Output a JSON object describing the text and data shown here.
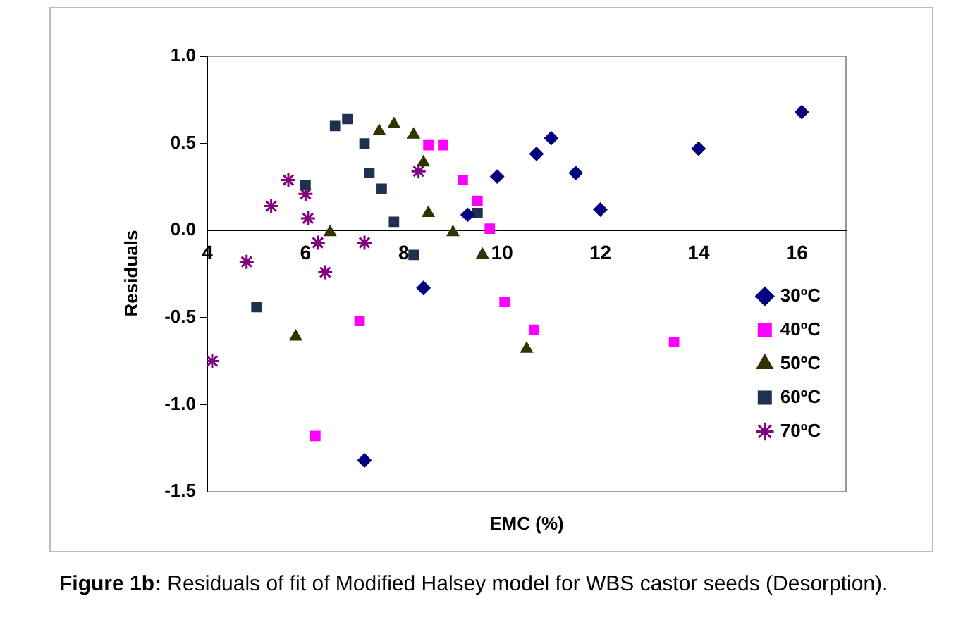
{
  "chart_data": {
    "type": "scatter",
    "xlabel": "EMC (%)",
    "ylabel": "Residuals",
    "xlim": [
      4,
      17
    ],
    "xticks": [
      4,
      6,
      8,
      10,
      12,
      14,
      16
    ],
    "ylim": [
      -1.5,
      1
    ],
    "yticks": [
      {
        "value": -1.5,
        "label": "-1.5"
      },
      {
        "value": -1,
        "label": "-1.0"
      },
      {
        "value": -0.5,
        "label": "-0.5"
      },
      {
        "value": 0,
        "label": "0.0"
      },
      {
        "value": 0.5,
        "label": "0.5"
      },
      {
        "value": 1,
        "label": "1.0"
      }
    ],
    "grid": false,
    "legend": "right",
    "annotations": [
      "Figure 1b: Residuals of fit of Modified Halsey model for WBS castor seeds (Desorption)."
    ],
    "series": [
      {
        "name": "30ºC",
        "color": "#000080",
        "marker": "diamond",
        "x": [
          7.2,
          8.4,
          9.3,
          9.9,
          10.7,
          11.0,
          11.5,
          12.0,
          14.0,
          16.1
        ],
        "values": [
          -1.32,
          -0.33,
          0.09,
          0.31,
          0.44,
          0.53,
          0.33,
          0.12,
          0.47,
          0.68
        ]
      },
      {
        "name": "40ºC",
        "color": "#ff00ff",
        "marker": "square",
        "x": [
          6.2,
          7.1,
          8.5,
          8.8,
          9.2,
          9.5,
          9.75,
          10.05,
          10.65,
          13.5
        ],
        "values": [
          -1.18,
          -0.52,
          0.49,
          0.49,
          0.29,
          0.17,
          0.01,
          -0.41,
          -0.57,
          -0.64
        ]
      },
      {
        "name": "50ºC",
        "color": "#333300",
        "marker": "triangle",
        "x": [
          5.8,
          6.5,
          7.5,
          7.8,
          8.2,
          8.4,
          8.5,
          9.0,
          9.6,
          10.5
        ],
        "values": [
          -0.61,
          -0.01,
          0.57,
          0.61,
          0.55,
          0.39,
          0.1,
          -0.01,
          -0.14,
          -0.68
        ]
      },
      {
        "name": "60ºC",
        "color": "#1f3050",
        "marker": "square",
        "x": [
          5.0,
          6.0,
          6.6,
          6.85,
          7.2,
          7.3,
          7.55,
          7.8,
          8.2,
          9.5
        ],
        "values": [
          -0.44,
          0.26,
          0.6,
          0.64,
          0.5,
          0.33,
          0.24,
          0.05,
          -0.14,
          0.1
        ]
      },
      {
        "name": "70ºC",
        "color": "#800080",
        "marker": "cross",
        "x": [
          4.1,
          4.8,
          5.3,
          5.65,
          6.0,
          6.05,
          6.25,
          6.4,
          7.2,
          8.3
        ],
        "values": [
          -0.75,
          -0.18,
          0.14,
          0.29,
          0.21,
          0.07,
          -0.07,
          -0.24,
          -0.07,
          0.34
        ]
      }
    ]
  }
}
